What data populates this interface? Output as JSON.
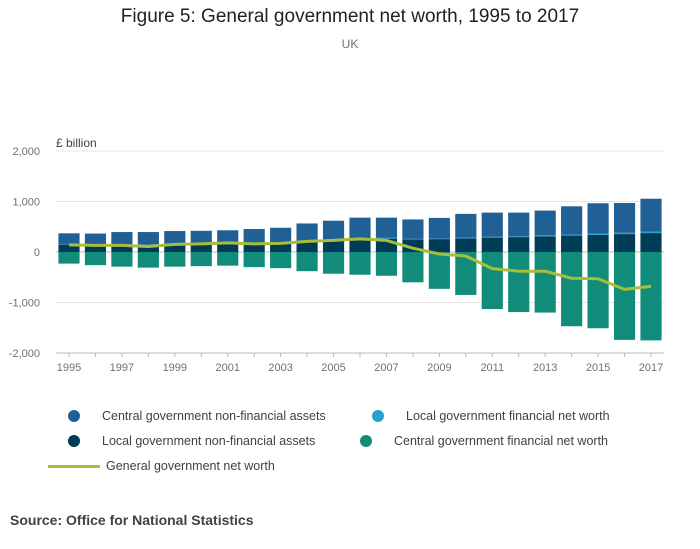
{
  "chart_data": {
    "type": "bar",
    "stacked": true,
    "title": "Figure 5: General government net worth, 1995 to 2017",
    "subtitle": "UK",
    "ylabel": "£ billion",
    "xlabel": "",
    "ylim": [
      -2000,
      2000
    ],
    "yticks": [
      2000,
      1000,
      0,
      -1000,
      -2000
    ],
    "ytick_labels": [
      "2,000",
      "1,000",
      "0",
      "-1,000",
      "-2,000"
    ],
    "categories": [
      "1995",
      "1996",
      "1997",
      "1998",
      "1999",
      "2000",
      "2001",
      "2002",
      "2003",
      "2004",
      "2005",
      "2006",
      "2007",
      "2008",
      "2009",
      "2010",
      "2011",
      "2012",
      "2013",
      "2014",
      "2015",
      "2016",
      "2017"
    ],
    "xtick_labels": [
      "1995",
      "1997",
      "1999",
      "2001",
      "2003",
      "2005",
      "2007",
      "2009",
      "2011",
      "2013",
      "2015",
      "2017"
    ],
    "series": [
      {
        "name": "Local government non-financial assets",
        "color": "#003c57",
        "values": [
          140,
          140,
          145,
          150,
          155,
          160,
          165,
          175,
          190,
          210,
          230,
          255,
          265,
          250,
          255,
          270,
          285,
          295,
          310,
          325,
          340,
          355,
          375
        ]
      },
      {
        "name": "Local government financial net worth",
        "color": "#27a0cc",
        "values": [
          5,
          5,
          5,
          5,
          5,
          5,
          5,
          5,
          5,
          10,
          10,
          15,
          15,
          10,
          10,
          15,
          15,
          15,
          20,
          20,
          25,
          25,
          30
        ]
      },
      {
        "name": "Central government non-financial assets",
        "color": "#206095",
        "values": [
          225,
          220,
          245,
          240,
          255,
          255,
          260,
          275,
          285,
          345,
          380,
          410,
          400,
          385,
          410,
          470,
          480,
          470,
          490,
          560,
          600,
          590,
          650
        ]
      },
      {
        "name": "Central government financial net worth",
        "color": "#118c7b",
        "values": [
          -230,
          -260,
          -290,
          -310,
          -290,
          -280,
          -270,
          -300,
          -320,
          -380,
          -430,
          -450,
          -470,
          -600,
          -730,
          -850,
          -1130,
          -1190,
          -1200,
          -1470,
          -1510,
          -1740,
          -1750
        ]
      }
    ],
    "line": {
      "name": "General government net worth",
      "color": "#a8bd3a",
      "values": [
        140,
        130,
        130,
        110,
        150,
        160,
        180,
        160,
        170,
        210,
        230,
        260,
        230,
        75,
        -40,
        -80,
        -330,
        -380,
        -380,
        -520,
        -530,
        -740,
        -680
      ]
    },
    "legend_position": "bottom",
    "grid": true
  },
  "source": "Source: Office for National Statistics"
}
